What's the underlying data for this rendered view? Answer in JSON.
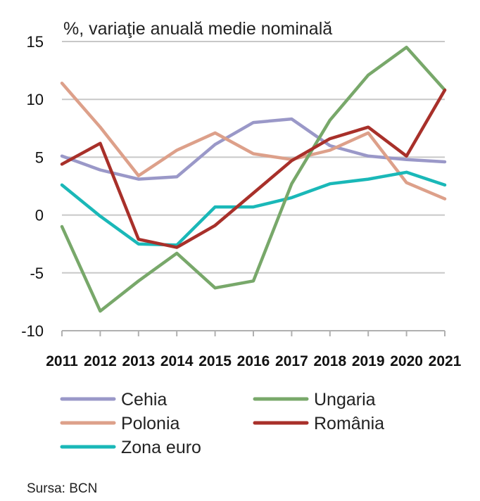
{
  "chart_data": {
    "type": "line",
    "title": "%, variaţie anuală medie nominală",
    "x": [
      "2011",
      "2012",
      "2013",
      "2014",
      "2015",
      "2016",
      "2017",
      "2018",
      "2019",
      "2020",
      "2021"
    ],
    "ylim": [
      -10,
      15
    ],
    "yticks": [
      "15",
      "10",
      "5",
      "0",
      "-5",
      "-10"
    ],
    "grid": true,
    "legend_position": "bottom",
    "series": [
      {
        "name": "Cehia",
        "color": "#9a98c8",
        "values": [
          5.1,
          3.9,
          3.1,
          3.3,
          6.1,
          8.0,
          8.3,
          6.0,
          5.1,
          4.8,
          4.6
        ]
      },
      {
        "name": "Ungaria",
        "color": "#78a86a",
        "values": [
          -1.0,
          -8.3,
          -5.7,
          -3.3,
          -6.3,
          -5.7,
          2.7,
          8.2,
          12.1,
          14.5,
          10.8
        ]
      },
      {
        "name": "Polonia",
        "color": "#dda08a",
        "values": [
          11.4,
          7.6,
          3.4,
          5.6,
          7.1,
          5.3,
          4.8,
          5.6,
          7.1,
          2.8,
          1.4
        ]
      },
      {
        "name": "România",
        "color": "#a8302a",
        "values": [
          4.4,
          6.2,
          -2.1,
          -2.8,
          -0.9,
          1.9,
          4.7,
          6.6,
          7.6,
          5.1,
          10.8
        ]
      },
      {
        "name": "Zona euro",
        "color": "#1ab8b8",
        "values": [
          2.6,
          -0.1,
          -2.5,
          -2.6,
          0.7,
          0.7,
          1.5,
          2.7,
          3.1,
          3.7,
          2.6
        ]
      }
    ]
  },
  "source": "Sursa: BCN"
}
